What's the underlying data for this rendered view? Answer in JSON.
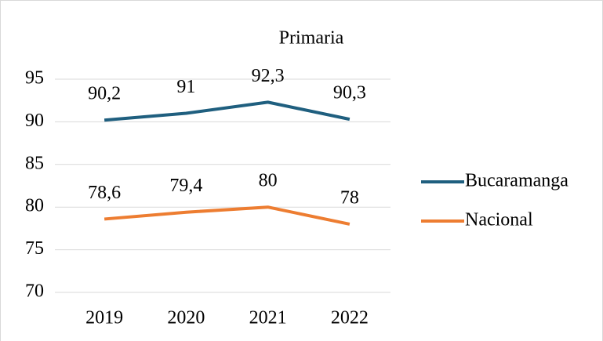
{
  "chart_data": {
    "type": "line",
    "title": "Primaria",
    "categories": [
      "2019",
      "2020",
      "2021",
      "2022"
    ],
    "series": [
      {
        "name": "Bucaramanga",
        "color": "#1f5f7f",
        "values": [
          90.2,
          91,
          92.3,
          90.3
        ],
        "value_labels": [
          "90,2",
          "91",
          "92,3",
          "90,3"
        ]
      },
      {
        "name": "Nacional",
        "color": "#ed7d31",
        "values": [
          78.6,
          79.4,
          80,
          78
        ],
        "value_labels": [
          "78,6",
          "79,4",
          "80",
          "78"
        ]
      }
    ],
    "ylim": [
      70,
      95
    ],
    "yticks": [
      70,
      75,
      80,
      85,
      90,
      95
    ],
    "grid": true,
    "legend": "right"
  }
}
